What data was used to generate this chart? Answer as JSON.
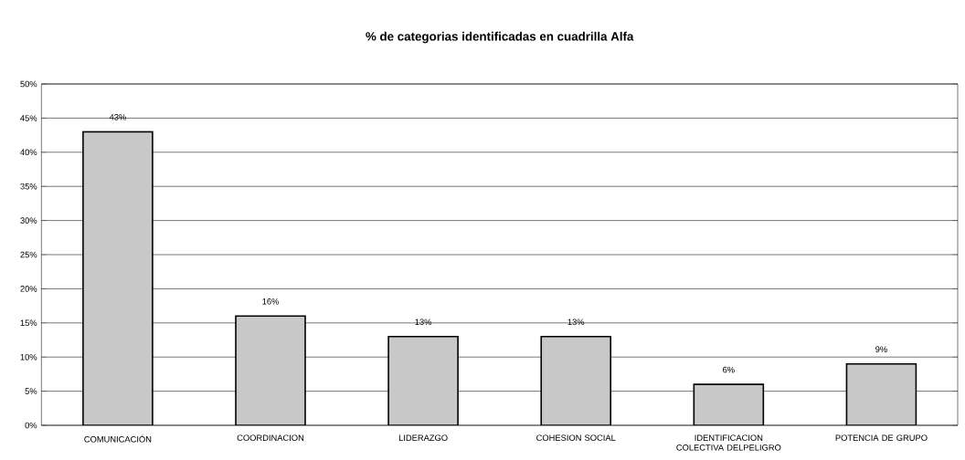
{
  "chart_data": {
    "type": "bar",
    "title": "% de categorias identificadas en cuadrilla Alfa",
    "categories": [
      "COMUNICACIÓN",
      "COORDINACION",
      "LIDERAZGO",
      "COHESION SOCIAL",
      "IDENTIFICACION COLECTIVA DELPELIGRO",
      "POTENCIA DE GRUPO"
    ],
    "values": [
      43,
      16,
      13,
      13,
      6,
      9
    ],
    "value_labels": [
      "43%",
      "16%",
      "13%",
      "13%",
      "6%",
      "9%"
    ],
    "color": "#c8c8c8",
    "ylim": [
      0,
      50
    ],
    "yticks": [
      {
        "value": 0,
        "label": "0%"
      },
      {
        "value": 5,
        "label": "5%"
      },
      {
        "value": 10,
        "label": "10%"
      },
      {
        "value": 15,
        "label": "15%"
      },
      {
        "value": 20,
        "label": "20%"
      },
      {
        "value": 25,
        "label": "25%"
      },
      {
        "value": 30,
        "label": "30%"
      },
      {
        "value": 35,
        "label": "35%"
      },
      {
        "value": 40,
        "label": "40%"
      },
      {
        "value": 45,
        "label": "45%"
      },
      {
        "value": 50,
        "label": "50%"
      }
    ],
    "grid": "y"
  }
}
